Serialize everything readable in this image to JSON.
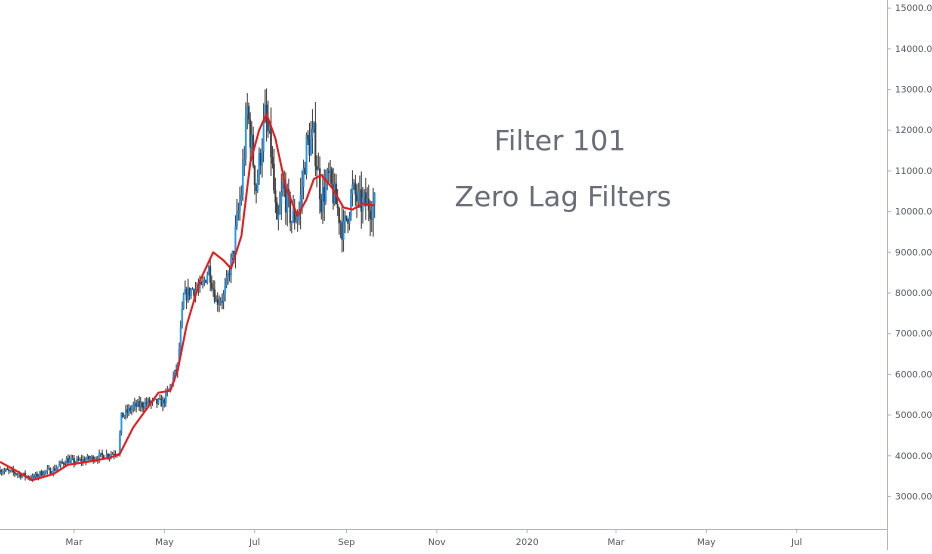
{
  "chart_data": {
    "type": "candlestick",
    "title": "",
    "xlabel": "",
    "ylabel": "",
    "ylim": [
      2200,
      15200
    ],
    "xlim": [
      "2019-01-10",
      "2020-08-31"
    ],
    "y_ticks": [
      3000,
      4000,
      5000,
      6000,
      7000,
      8000,
      9000,
      10000,
      11000,
      12000,
      13000,
      14000,
      15000
    ],
    "y_tick_labels": [
      "3000.00",
      "4000.00",
      "5000.00",
      "6000.00",
      "7000.00",
      "8000.00",
      "9000.00",
      "10000.00",
      "11000.00",
      "12000.00",
      "13000.00",
      "14000.00",
      "15000.00"
    ],
    "x_ticks": [
      {
        "date": "2019-03-01",
        "label": "Mar"
      },
      {
        "date": "2019-05-01",
        "label": "May"
      },
      {
        "date": "2019-07-01",
        "label": "Jul"
      },
      {
        "date": "2019-09-01",
        "label": "Sep"
      },
      {
        "date": "2019-11-01",
        "label": "Nov"
      },
      {
        "date": "2020-01-01",
        "label": "2020"
      },
      {
        "date": "2020-03-01",
        "label": "Mar"
      },
      {
        "date": "2020-05-01",
        "label": "May"
      },
      {
        "date": "2020-07-01",
        "label": "Jul"
      }
    ],
    "price_path": [
      [
        "2019-01-10",
        3650
      ],
      [
        "2019-01-20",
        3580
      ],
      [
        "2019-02-01",
        3450
      ],
      [
        "2019-02-08",
        3600
      ],
      [
        "2019-02-15",
        3650
      ],
      [
        "2019-02-24",
        3900
      ],
      [
        "2019-03-01",
        3850
      ],
      [
        "2019-03-15",
        3950
      ],
      [
        "2019-03-31",
        4100
      ],
      [
        "2019-04-02",
        4950
      ],
      [
        "2019-04-10",
        5200
      ],
      [
        "2019-04-20",
        5300
      ],
      [
        "2019-04-30",
        5300
      ],
      [
        "2019-05-05",
        5700
      ],
      [
        "2019-05-10",
        6200
      ],
      [
        "2019-05-14",
        7900
      ],
      [
        "2019-05-20",
        8100
      ],
      [
        "2019-05-26",
        8100
      ],
      [
        "2019-05-31",
        8600
      ],
      [
        "2019-06-05",
        7800
      ],
      [
        "2019-06-10",
        7900
      ],
      [
        "2019-06-16",
        8900
      ],
      [
        "2019-06-22",
        10500
      ],
      [
        "2019-06-26",
        12500
      ],
      [
        "2019-06-28",
        11900
      ],
      [
        "2019-07-02",
        10600
      ],
      [
        "2019-07-08",
        12300
      ],
      [
        "2019-07-12",
        11500
      ],
      [
        "2019-07-16",
        9500
      ],
      [
        "2019-07-20",
        10600
      ],
      [
        "2019-07-26",
        9800
      ],
      [
        "2019-07-31",
        10000
      ],
      [
        "2019-08-05",
        11600
      ],
      [
        "2019-08-10",
        11800
      ],
      [
        "2019-08-15",
        10300
      ],
      [
        "2019-08-20",
        10800
      ],
      [
        "2019-08-25",
        10200
      ],
      [
        "2019-08-30",
        9500
      ],
      [
        "2019-09-05",
        10500
      ],
      [
        "2019-09-10",
        10200
      ],
      [
        "2019-09-20",
        10150
      ]
    ],
    "series": [
      {
        "type": "line",
        "color": "#e61c1c",
        "values": [
          [
            "2019-01-10",
            3850
          ],
          [
            "2019-01-20",
            3650
          ],
          [
            "2019-02-01",
            3400
          ],
          [
            "2019-02-15",
            3550
          ],
          [
            "2019-02-25",
            3780
          ],
          [
            "2019-03-10",
            3850
          ],
          [
            "2019-03-25",
            3950
          ],
          [
            "2019-04-01",
            4050
          ],
          [
            "2019-04-10",
            4700
          ],
          [
            "2019-04-20",
            5200
          ],
          [
            "2019-04-27",
            5550
          ],
          [
            "2019-05-05",
            5600
          ],
          [
            "2019-05-10",
            6100
          ],
          [
            "2019-05-16",
            7200
          ],
          [
            "2019-05-25",
            8300
          ],
          [
            "2019-06-03",
            9000
          ],
          [
            "2019-06-10",
            8800
          ],
          [
            "2019-06-15",
            8600
          ],
          [
            "2019-06-22",
            9400
          ],
          [
            "2019-06-28",
            11200
          ],
          [
            "2019-07-04",
            12000
          ],
          [
            "2019-07-09",
            12400
          ],
          [
            "2019-07-15",
            11800
          ],
          [
            "2019-07-22",
            10600
          ],
          [
            "2019-07-30",
            9900
          ],
          [
            "2019-08-05",
            10300
          ],
          [
            "2019-08-10",
            10800
          ],
          [
            "2019-08-15",
            10900
          ],
          [
            "2019-08-22",
            10600
          ],
          [
            "2019-08-30",
            10100
          ],
          [
            "2019-09-05",
            10050
          ],
          [
            "2019-09-12",
            10200
          ],
          [
            "2019-09-20",
            10150
          ]
        ]
      }
    ],
    "colors": {
      "candle_up": "#2196f3",
      "candle_down": "#3f3f3f",
      "line": "#e61c1c",
      "axis": "#b2b5be"
    },
    "annotations": [
      "Filter 101",
      "Zero Lag Filters"
    ]
  }
}
